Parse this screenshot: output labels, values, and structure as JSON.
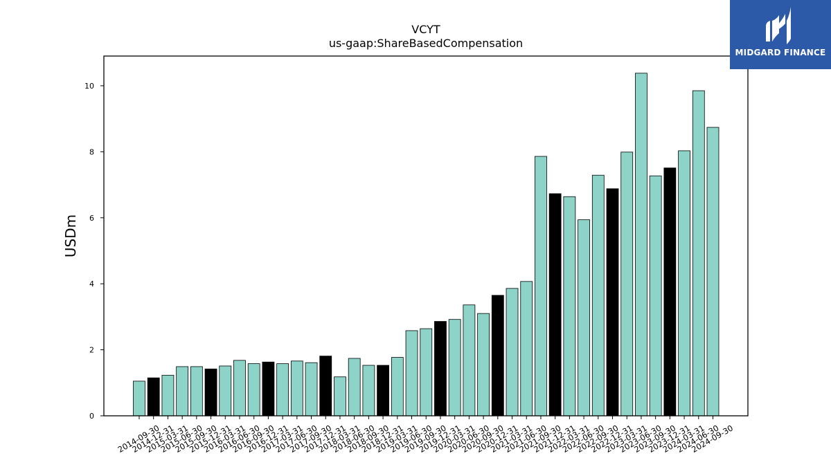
{
  "logo": {
    "text": "MIDGARD FINANCE",
    "icon": "midgard-logo-icon"
  },
  "chart_data": {
    "type": "bar",
    "title": "VCYT",
    "subtitle": "us-gaap:ShareBasedCompensation",
    "xlabel": "",
    "ylabel": "USDm",
    "ylim": [
      0,
      10.9
    ],
    "yticks": [
      0,
      2,
      4,
      6,
      8,
      10
    ],
    "grid": false,
    "colors": {
      "quarter": "#8dd3c7",
      "year_end": "#000000",
      "edge": "#000000"
    },
    "categories": [
      "2014-09-30",
      "2014-12-31",
      "2015-03-31",
      "2015-06-30",
      "2015-09-30",
      "2015-12-31",
      "2016-03-31",
      "2016-06-30",
      "2016-09-30",
      "2016-12-31",
      "2017-03-31",
      "2017-06-30",
      "2017-09-30",
      "2017-12-31",
      "2018-03-31",
      "2018-06-30",
      "2018-09-30",
      "2018-12-31",
      "2019-03-31",
      "2019-06-30",
      "2019-09-30",
      "2019-12-31",
      "2020-03-31",
      "2020-06-30",
      "2020-09-30",
      "2020-12-31",
      "2021-03-31",
      "2021-06-30",
      "2021-09-30",
      "2021-12-31",
      "2022-03-31",
      "2022-06-30",
      "2022-09-30",
      "2022-12-31",
      "2023-03-31",
      "2023-06-30",
      "2023-09-30",
      "2023-12-31",
      "2024-03-31",
      "2024-06-30",
      "2024-09-30"
    ],
    "values": [
      1.05,
      1.15,
      1.23,
      1.49,
      1.49,
      1.42,
      1.51,
      1.68,
      1.58,
      1.63,
      1.58,
      1.66,
      1.61,
      1.81,
      1.18,
      1.74,
      1.53,
      1.53,
      1.77,
      2.58,
      2.64,
      2.86,
      2.92,
      3.36,
      3.1,
      3.65,
      3.86,
      4.07,
      7.86,
      6.73,
      6.64,
      5.94,
      7.29,
      6.88,
      7.99,
      10.38,
      7.27,
      7.51,
      8.03,
      9.85,
      8.74
    ],
    "highlight": [
      false,
      true,
      false,
      false,
      false,
      true,
      false,
      false,
      false,
      true,
      false,
      false,
      false,
      true,
      false,
      false,
      false,
      true,
      false,
      false,
      false,
      true,
      false,
      false,
      false,
      true,
      false,
      false,
      false,
      true,
      false,
      false,
      false,
      true,
      false,
      false,
      false,
      true,
      false,
      false,
      false
    ]
  }
}
